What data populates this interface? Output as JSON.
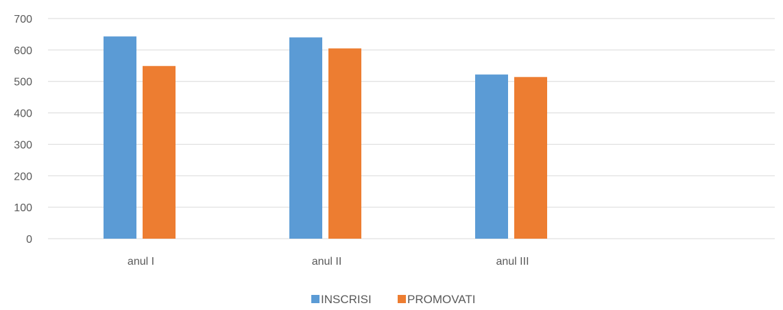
{
  "chart_data": {
    "type": "bar",
    "title": "",
    "xlabel": "",
    "ylabel": "",
    "categories": [
      "anul I",
      "anul  II",
      "anul III",
      ""
    ],
    "series": [
      {
        "name": "INSCRISI",
        "color": "#5B9BD5",
        "values": [
          643,
          640,
          522,
          null
        ]
      },
      {
        "name": "PROMOVATI",
        "color": "#ED7D31",
        "values": [
          549,
          605,
          514,
          null
        ]
      }
    ],
    "ylim": [
      0,
      700
    ],
    "yticks": [
      0,
      100,
      200,
      300,
      400,
      500,
      600,
      700
    ],
    "grid": true,
    "gridline_color": "#D9D9D9",
    "legend_position": "bottom-center"
  }
}
